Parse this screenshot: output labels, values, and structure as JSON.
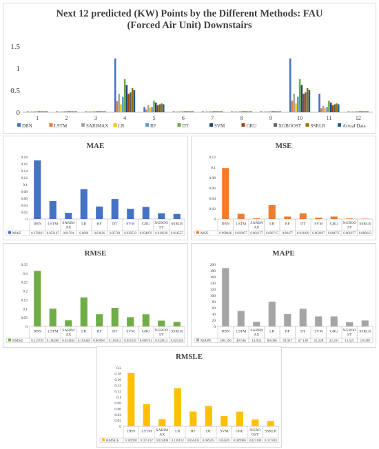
{
  "main_title": "Next 12 predicted (KW) Points by the Different Methods: FAU (Forced Air Unit) Downstairs",
  "palette": {
    "DBN": "#4472C4",
    "LSTM": "#ED7D31",
    "SARIMAX": "#A5A5A5",
    "LR": "#FFC000",
    "RF": "#5B9BD5",
    "DT": "#70AD47",
    "SVM": "#264478",
    "GRU": "#9E480E",
    "XGBOOST": "#636363",
    "SSRLR": "#997300",
    "Actual Data": "#255E91"
  },
  "chart_data": [
    {
      "id": "main",
      "type": "bar",
      "title": "Next 12 predicted (KW) Points by the Different Methods: FAU (Forced Air Unit) Downstairs",
      "categories": [
        "1",
        "2",
        "3",
        "4",
        "5",
        "6",
        "7",
        "8",
        "9",
        "10",
        "11",
        "12"
      ],
      "ylim": [
        0,
        1.5
      ],
      "yticks": [
        "0",
        "0.5",
        "1",
        "1.5"
      ],
      "series": [
        {
          "name": "DBN",
          "values": [
            0.02,
            0.02,
            0.02,
            1.22,
            0.12,
            0.02,
            0.02,
            0.02,
            0.02,
            1.22,
            0.42,
            0.02
          ]
        },
        {
          "name": "LSTM",
          "values": [
            0.01,
            0.01,
            0.01,
            0.25,
            0.06,
            0.01,
            0.01,
            0.01,
            0.01,
            0.26,
            0.09,
            0.01
          ]
        },
        {
          "name": "SARIMAX",
          "values": [
            0.02,
            0.02,
            0.02,
            0.42,
            0.16,
            0.02,
            0.02,
            0.02,
            0.02,
            0.42,
            0.14,
            0.02
          ]
        },
        {
          "name": "LR",
          "values": [
            0.02,
            0.02,
            0.02,
            0.18,
            0.1,
            0.02,
            0.02,
            0.02,
            0.02,
            0.2,
            0.09,
            0.02
          ]
        },
        {
          "name": "RF",
          "values": [
            0.02,
            0.02,
            0.02,
            0.35,
            0.12,
            0.02,
            0.02,
            0.02,
            0.02,
            0.35,
            0.12,
            0.02
          ]
        },
        {
          "name": "DT",
          "values": [
            0.02,
            0.02,
            0.02,
            0.75,
            0.26,
            0.02,
            0.02,
            0.02,
            0.02,
            0.75,
            0.26,
            0.02
          ]
        },
        {
          "name": "SVM",
          "values": [
            0.02,
            0.02,
            0.02,
            0.62,
            0.22,
            0.02,
            0.02,
            0.02,
            0.02,
            0.62,
            0.22,
            0.02
          ]
        },
        {
          "name": "GRU",
          "values": [
            0.02,
            0.02,
            0.02,
            0.42,
            0.16,
            0.02,
            0.02,
            0.02,
            0.02,
            0.42,
            0.16,
            0.02
          ]
        },
        {
          "name": "XGBOOST",
          "values": [
            0.02,
            0.02,
            0.02,
            0.45,
            0.18,
            0.02,
            0.02,
            0.02,
            0.02,
            0.45,
            0.18,
            0.02
          ]
        },
        {
          "name": "SSRLR",
          "values": [
            0.02,
            0.02,
            0.02,
            0.55,
            0.2,
            0.02,
            0.02,
            0.02,
            0.02,
            0.55,
            0.2,
            0.02
          ]
        },
        {
          "name": "Actual Data",
          "values": [
            0.02,
            0.02,
            0.02,
            0.5,
            0.18,
            0.02,
            0.02,
            0.02,
            0.02,
            0.5,
            0.18,
            0.02
          ]
        }
      ]
    },
    {
      "id": "mae",
      "type": "bar",
      "title": "MAE",
      "color": "#4472C4",
      "legend": "MAE",
      "categories": [
        "DBN",
        "LSTM",
        "SARIM AX",
        "LR",
        "RF",
        "DT",
        "SVM",
        "GRU",
        "XGBOO ST",
        "SSRLR"
      ],
      "values": [
        0.170361,
        0.052167,
        0.01784,
        0.0866,
        0.03626,
        0.05781,
        0.029523,
        0.034976,
        0.016639,
        0.014557
      ],
      "labels": [
        "0.170361",
        "0.052167",
        "0.01784",
        "0.0866",
        "0.03626",
        "0.05781",
        "0.029523",
        "0.034976",
        "0.016639",
        "0.014557"
      ],
      "ylim": [
        0,
        0.18
      ],
      "yticks": [
        "0",
        "0.02",
        "0.04",
        "0.06",
        "0.08",
        "0.1",
        "0.12",
        "0.14",
        "0.16",
        "0.18"
      ]
    },
    {
      "id": "mse",
      "type": "bar",
      "title": "MSE",
      "color": "#ED7D31",
      "legend": "MSE",
      "categories": [
        "DBN",
        "LSTM",
        "SARIM AX",
        "LR",
        "RF",
        "DT",
        "SVM",
        "GRU",
        "XGBOO ST",
        "SSRLR"
      ],
      "values": [
        0.098466,
        0.010057,
        0.001177,
        0.026715,
        0.00477,
        0.011028,
        0.002697,
        0.004725,
        0.001077,
        0.000643
      ],
      "labels": [
        "0.098466",
        "0.010057",
        "0.001177",
        "0.026715",
        "0.00477",
        "0.011028",
        "0.002697",
        "0.004725",
        "0.001077",
        "0.000643"
      ],
      "ylim": [
        0,
        0.12
      ],
      "yticks": [
        "0",
        "0.02",
        "0.04",
        "0.06",
        "0.08",
        "0.1",
        "0.12"
      ]
    },
    {
      "id": "rmse",
      "type": "bar",
      "title": "RMSE",
      "color": "#70AD47",
      "legend": "RMSE",
      "categories": [
        "DBN",
        "LSTM",
        "SARIM AX",
        "LR",
        "RF",
        "DT",
        "SVM",
        "GRU",
        "XGBOO ST",
        "SSRLR"
      ],
      "values": [
        0.313795,
        0.100286,
        0.034304,
        0.163448,
        0.069065,
        0.105014,
        0.051935,
        0.068741,
        0.032813,
        0.025358
      ],
      "labels": [
        "0.313795",
        "0.100286",
        "0.034304",
        "0.163448",
        "0.069065",
        "0.105014",
        "0.051935",
        "0.068741",
        "0.032813",
        "0.025358"
      ],
      "ylim": [
        0,
        0.35
      ],
      "yticks": [
        "0",
        "0.05",
        "0.1",
        "0.15",
        "0.2",
        "0.25",
        "0.3",
        "0.35"
      ]
    },
    {
      "id": "mape",
      "type": "bar",
      "title": "MAPE",
      "color": "#A5A5A5",
      "legend": "MAPE",
      "categories": [
        "DBN",
        "LSTM",
        "SARIM AX",
        "LR",
        "RF",
        "DT",
        "SVM",
        "GRU",
        "XGBOO ST",
        "SSRLR"
      ],
      "values": [
        188.166,
        49.636,
        14.932,
        80.096,
        39.917,
        57.138,
        32.228,
        32.261,
        13.521,
        19.098
      ],
      "labels": [
        "188.166",
        "49.636",
        "14.932",
        "80.096",
        "39.917",
        "57.138",
        "32.228",
        "32.261",
        "13.521",
        "19.098"
      ],
      "ylim": [
        0,
        200
      ],
      "yticks": [
        "0",
        "20",
        "40",
        "60",
        "80",
        "100",
        "120",
        "140",
        "160",
        "180",
        "200"
      ]
    },
    {
      "id": "rmsle",
      "type": "bar",
      "title": "RMSLE",
      "color": "#FFC000",
      "legend": "RMSLE",
      "categories": [
        "DBN",
        "LSTM",
        "SARIM AX",
        "LR",
        "RF",
        "DT",
        "SVM",
        "GRU",
        "XGBO OST",
        "SSRLR"
      ],
      "values": [
        0.181992,
        0.075192,
        0.024408,
        0.130162,
        0.050443,
        0.069261,
        0.03509,
        0.049986,
        0.023186,
        0.017828
      ],
      "labels": [
        "0.181992",
        "0.075192",
        "0.024408",
        "0.130162",
        "0.050443",
        "0.069261",
        "0.03509",
        "0.049986",
        "0.023186",
        "0.017828"
      ],
      "ylim": [
        0,
        0.2
      ],
      "yticks": [
        "0",
        "0.02",
        "0.04",
        "0.06",
        "0.08",
        "0.1",
        "0.12",
        "0.14",
        "0.16",
        "0.18",
        "0.2"
      ]
    }
  ]
}
